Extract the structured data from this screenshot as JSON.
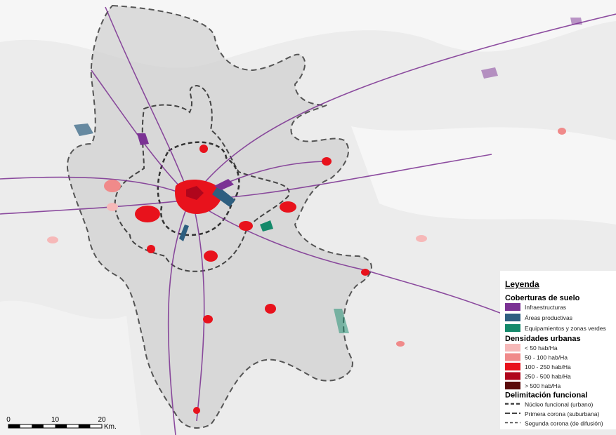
{
  "legend": {
    "title": "Leyenda",
    "sections": [
      {
        "heading": "Coberturas de suelo",
        "items": [
          {
            "label": "Infraestructuras",
            "color": "#7b3294"
          },
          {
            "label": "Áreas productivas",
            "color": "#2e5f80"
          },
          {
            "label": "Equipamientos y zonas verdes",
            "color": "#14896a"
          }
        ]
      },
      {
        "heading": "Densidades urbanas",
        "items": [
          {
            "label": "< 50 hab/Ha",
            "color": "#f6b8b8"
          },
          {
            "label": "50 - 100 hab/Ha",
            "color": "#f08a8a"
          },
          {
            "label": "100 - 250 hab/Ha",
            "color": "#e8121c"
          },
          {
            "label": "250 - 500 hab/Ha",
            "color": "#b0061c"
          },
          {
            "label": "> 500 hab/Ha",
            "color": "#5a0a0a"
          }
        ]
      },
      {
        "heading": "Delimitación funcional",
        "items": [
          {
            "label": "Núcleo funcional (urbano)"
          },
          {
            "label": "Primera corona (suburbana)"
          },
          {
            "label": "Segunda corona (de difusión)"
          }
        ]
      }
    ]
  },
  "scale_bar": {
    "ticks": [
      0,
      10,
      20
    ],
    "unit": "Km."
  }
}
